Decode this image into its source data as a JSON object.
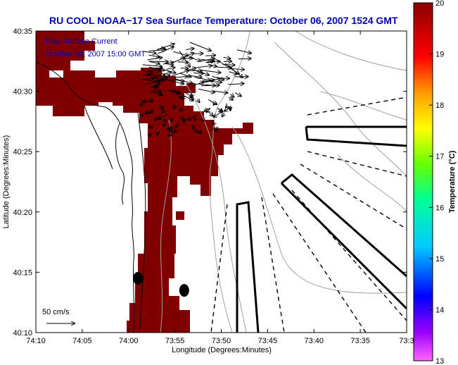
{
  "chart_data": {
    "type": "heatmap",
    "title": "RU COOL  NOAA−17  Sea Surface Temperature:  October 06, 2007 1524 GMT",
    "xlabel": "Longitude (Degrees:Minutes)",
    "ylabel": "Latitude (Degrees:Minutes)",
    "x_ticks": [
      "74:10",
      "74:05",
      "74:00",
      "73:55",
      "73:50",
      "73:45",
      "73:40",
      "73:35",
      "73:3"
    ],
    "y_ticks": [
      "40:35",
      "40:30",
      "40:25",
      "40:20",
      "40:15",
      "40:10"
    ],
    "xlim": [
      -74.1667,
      -73.5
    ],
    "ylim": [
      40.1667,
      40.5833
    ],
    "colorbar": {
      "label": "Temperature (°C)",
      "ticks": [
        "20",
        "19",
        "18",
        "17",
        "16",
        "15",
        "14",
        "13"
      ],
      "range": [
        13,
        20
      ],
      "colors": [
        "#ff66ff",
        "#6600cc",
        "#0000ff",
        "#00ccff",
        "#00ff99",
        "#66ff00",
        "#ffff00",
        "#ff9900",
        "#ff0000",
        "#8b0000"
      ]
    },
    "annotations": {
      "current_label": "Raw Surface Current",
      "current_time": "October 06, 2007 15:00 GMT",
      "scale_label": "50 cm/s"
    },
    "sst_field_color": "#800000",
    "sst_field_value": 20,
    "points": [
      {
        "lon": -73.9833,
        "lat": 40.2417
      },
      {
        "lon": -73.9,
        "lat": 40.225
      }
    ]
  }
}
